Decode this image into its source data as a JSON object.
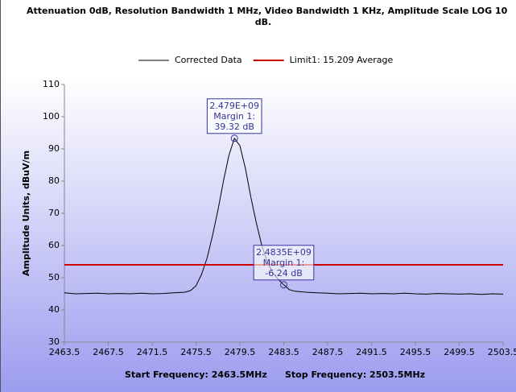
{
  "chart_data": {
    "type": "line",
    "title": [
      "Attenuation 0dB, Resolution Bandwidth 1 MHz, Video Bandwidth 1 KHz, Amplitude Scale LOG 10",
      "dB."
    ],
    "y_label": "Amplitude Units, dBuV/m",
    "footer": [
      "Start Frequency: 2463.5MHz",
      "Stop Frequency: 2503.5MHz"
    ],
    "xlim": [
      2463.5,
      2503.5
    ],
    "xticks": [
      2463.5,
      2467.5,
      2471.5,
      2475.5,
      2479.5,
      2483.5,
      2487.5,
      2491.5,
      2495.5,
      2499.5,
      2503.5
    ],
    "ylim": [
      30,
      110
    ],
    "yticks": [
      30,
      40,
      50,
      60,
      70,
      80,
      90,
      100,
      110
    ],
    "series": [
      {
        "name": "Corrected Data",
        "color": "#000000",
        "x": [
          2463.5,
          2464.5,
          2465.5,
          2466.5,
          2467.5,
          2468.5,
          2469.5,
          2470.5,
          2471.5,
          2472.5,
          2473.5,
          2474.5,
          2475,
          2475.5,
          2476,
          2476.5,
          2477,
          2477.5,
          2478,
          2478.5,
          2479,
          2479.5,
          2480,
          2480.5,
          2481,
          2481.5,
          2482,
          2482.5,
          2483,
          2483.5,
          2484,
          2484.5,
          2485.5,
          2486.5,
          2487.5,
          2488.5,
          2489.5,
          2490.5,
          2491.5,
          2492.5,
          2493.5,
          2494.5,
          2495.5,
          2496.5,
          2497.5,
          2498.5,
          2499.5,
          2500.5,
          2501.5,
          2502.5,
          2503.5
        ],
        "values": [
          45.3,
          45.0,
          45.1,
          45.2,
          45.0,
          45.1,
          45.0,
          45.2,
          45.0,
          45.1,
          45.3,
          45.5,
          46.0,
          47.5,
          51,
          56,
          63,
          71,
          80,
          88,
          93.3,
          91,
          84,
          75,
          67,
          60,
          55,
          51.5,
          49.5,
          47.8,
          46.3,
          45.8,
          45.5,
          45.3,
          45.2,
          45.0,
          45.1,
          45.2,
          45.0,
          45.1,
          45.0,
          45.2,
          45.0,
          44.9,
          45.1,
          45.0,
          44.9,
          45.0,
          44.8,
          45.0,
          44.9
        ]
      },
      {
        "name": "Limit1: 15.209 Average",
        "color": "#cc0000",
        "x": [
          2463.5,
          2503.5
        ],
        "values": [
          54,
          54
        ]
      }
    ],
    "annotations": [
      {
        "x": 2479,
        "y": 93.3,
        "lines": [
          "2.479E+09",
          "Margin 1:",
          "39.32 dB"
        ]
      },
      {
        "x": 2483.5,
        "y": 47.8,
        "lines": [
          "2.4835E+09",
          "Margin 1:",
          "-6.24 dB"
        ]
      }
    ]
  }
}
